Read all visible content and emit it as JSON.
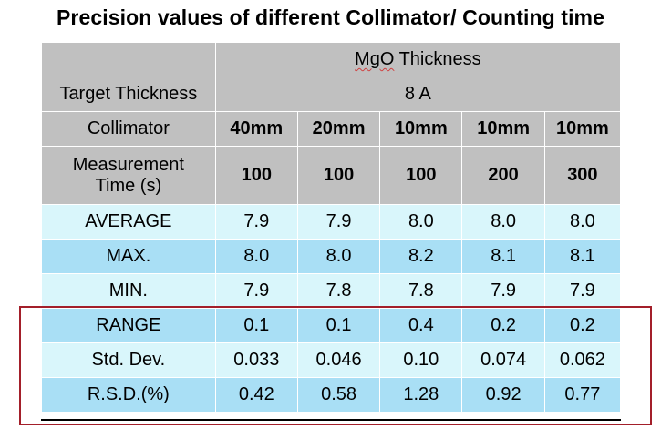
{
  "title": "Precision values of different Collimator/ Counting time",
  "table": {
    "header_group": "MgO Thickness",
    "target_label": "Target Thickness",
    "target_value": "8 A",
    "collimator_label": "Collimator",
    "collimators": [
      "40mm",
      "20mm",
      "10mm",
      "10mm",
      "10mm"
    ],
    "time_label_line1": "Measurement",
    "time_label_line2": "Time (s)",
    "times": [
      "100",
      "100",
      "100",
      "200",
      "300"
    ],
    "rows": [
      {
        "label": "AVERAGE",
        "values": [
          "7.9",
          "7.9",
          "8.0",
          "8.0",
          "8.0"
        ]
      },
      {
        "label": "MAX.",
        "values": [
          "8.0",
          "8.0",
          "8.2",
          "8.1",
          "8.1"
        ]
      },
      {
        "label": "MIN.",
        "values": [
          "7.9",
          "7.8",
          "7.8",
          "7.9",
          "7.9"
        ]
      },
      {
        "label": "RANGE",
        "values": [
          "0.1",
          "0.1",
          "0.4",
          "0.2",
          "0.2"
        ]
      },
      {
        "label": "Std. Dev.",
        "values": [
          "0.033",
          "0.046",
          "0.10",
          "0.074",
          "0.062"
        ]
      },
      {
        "label": "R.S.D.(%)",
        "values": [
          "0.42",
          "0.58",
          "1.28",
          "0.92",
          "0.77"
        ]
      }
    ]
  },
  "colors": {
    "header_bg": "#c0c0c0",
    "row_light": "#d9f6fb",
    "row_dark": "#a9dff5",
    "highlight_border": "#a31f2a"
  }
}
